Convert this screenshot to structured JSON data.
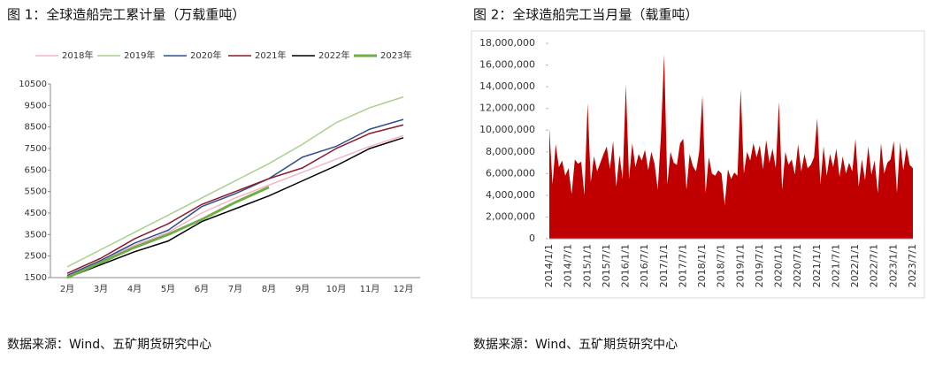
{
  "chart_data": [
    {
      "type": "line",
      "title": "图 1：全球造船完工累计量（万载重吨）",
      "source": "数据来源：Wind、五矿期货研究中心",
      "categories": [
        "2月",
        "3月",
        "4月",
        "5月",
        "6月",
        "7月",
        "8月",
        "9月",
        "10月",
        "11月",
        "12月"
      ],
      "ylim": [
        1500,
        10500
      ],
      "yticks": [
        1500,
        2500,
        3500,
        4500,
        5500,
        6500,
        7500,
        8500,
        9500,
        10500
      ],
      "legend": "top",
      "grid": false,
      "series": [
        {
          "name": "2018年",
          "color": "#f4b6c2",
          "width": 1.5,
          "values": [
            1600,
            2300,
            3000,
            3600,
            4500,
            5200,
            5800,
            6400,
            7000,
            7600,
            8100
          ]
        },
        {
          "name": "2019年",
          "color": "#a9d18e",
          "width": 1.5,
          "values": [
            2000,
            2800,
            3600,
            4400,
            5200,
            6000,
            6800,
            7700,
            8700,
            9400,
            9900
          ]
        },
        {
          "name": "2020年",
          "color": "#2f4f8f",
          "width": 1.5,
          "values": [
            1600,
            2300,
            3100,
            3700,
            4800,
            5400,
            6100,
            7100,
            7600,
            8400,
            8850
          ]
        },
        {
          "name": "2021年",
          "color": "#8b1a2b",
          "width": 1.5,
          "values": [
            1700,
            2400,
            3300,
            4000,
            4900,
            5500,
            6100,
            6600,
            7500,
            8200,
            8600
          ]
        },
        {
          "name": "2022年",
          "color": "#000000",
          "width": 1.5,
          "values": [
            1500,
            2100,
            2700,
            3200,
            4100,
            4700,
            5300,
            6000,
            6700,
            7500,
            8000
          ]
        },
        {
          "name": "2023年",
          "color": "#70ad47",
          "width": 3,
          "values": [
            1500,
            2200,
            2900,
            3500,
            4200,
            5000,
            5700,
            null,
            null,
            null,
            null
          ]
        }
      ]
    },
    {
      "type": "area",
      "title": "图 2：全球造船完工当月量（载重吨）",
      "source": "数据来源：Wind、五矿期货研究中心",
      "color": "#c00000",
      "ylim": [
        0,
        18000000
      ],
      "yticks": [
        0,
        {
          "value": 2000000,
          "label": "2,000,000"
        },
        {
          "value": 4000000,
          "label": "4,000,000"
        },
        {
          "value": 6000000,
          "label": "6,000,000"
        },
        {
          "value": 8000000,
          "label": "8,000,000"
        },
        {
          "value": 10000000,
          "label": "10,000,000"
        },
        {
          "value": 12000000,
          "label": "12,000,000"
        },
        {
          "value": 14000000,
          "label": "14,000,000"
        },
        {
          "value": 16000000,
          "label": "16,000,000"
        },
        {
          "value": 18000000,
          "label": "18,000,000"
        }
      ],
      "categories": [
        "2014/1/1",
        null,
        null,
        null,
        null,
        null,
        "2014/7/1",
        null,
        null,
        null,
        null,
        null,
        "2015/1/1",
        null,
        null,
        null,
        null,
        null,
        "2015/7/1",
        null,
        null,
        null,
        null,
        null,
        "2016/1/1",
        null,
        null,
        null,
        null,
        null,
        "2016/7/1",
        null,
        null,
        null,
        null,
        null,
        "2017/1/1",
        null,
        null,
        null,
        null,
        null,
        "2017/7/1",
        null,
        null,
        null,
        null,
        null,
        "2018/1/1",
        null,
        null,
        null,
        null,
        null,
        "2018/7/1",
        null,
        null,
        null,
        null,
        null,
        "2019/1/1",
        null,
        null,
        null,
        null,
        null,
        "2019/7/1",
        null,
        null,
        null,
        null,
        null,
        "2020/1/1",
        null,
        null,
        null,
        null,
        null,
        "2020/7/1",
        null,
        null,
        null,
        null,
        null,
        "2021/1/1",
        null,
        null,
        null,
        null,
        null,
        "2021/7/1",
        null,
        null,
        null,
        null,
        null,
        "2022/1/1",
        null,
        null,
        null,
        null,
        null,
        "2022/7/1",
        null,
        null,
        null,
        null,
        null,
        "2023/1/1",
        null,
        null,
        null,
        null,
        null,
        "2023/7/1"
      ],
      "values": [
        10200000,
        5000000,
        8700000,
        6600000,
        7200000,
        5800000,
        6500000,
        4100000,
        7300000,
        6900000,
        7100000,
        4000000,
        12500000,
        5200000,
        7600000,
        6200000,
        7000000,
        7800000,
        8500000,
        6400000,
        9000000,
        4800000,
        7700000,
        5500000,
        14200000,
        5500000,
        8800000,
        6600000,
        7800000,
        7200000,
        8200000,
        6300000,
        8000000,
        6900000,
        4500000,
        9500000,
        17000000,
        5000000,
        8000000,
        7000000,
        6800000,
        8800000,
        9200000,
        4500000,
        7800000,
        6700000,
        6200000,
        8000000,
        13200000,
        4200000,
        7500000,
        6000000,
        5800000,
        6300000,
        6000000,
        3100000,
        6400000,
        5500000,
        6100000,
        5800000,
        13800000,
        6000000,
        8000000,
        7200000,
        8800000,
        7500000,
        8600000,
        6400000,
        9100000,
        7000000,
        8300000,
        6500000,
        12600000,
        4500000,
        8000000,
        6800000,
        7300000,
        5900000,
        8700000,
        6200000,
        7800000,
        6500000,
        6800000,
        7500000,
        11100000,
        5000000,
        8500000,
        5800000,
        7800000,
        6600000,
        8300000,
        5700000,
        7600000,
        6000000,
        7000000,
        6200000,
        9200000,
        4800000,
        7300000,
        5400000,
        8500000,
        5900000,
        7200000,
        4200000,
        8800000,
        6000000,
        7000000,
        7300000,
        9000000,
        4200000,
        8900000,
        6300000,
        8400000,
        6800000,
        6500000
      ]
    }
  ]
}
